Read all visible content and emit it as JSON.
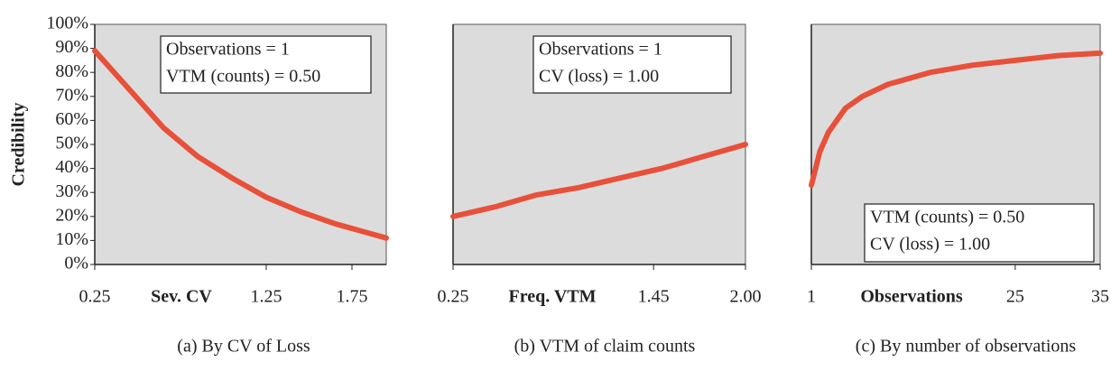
{
  "chart_data": [
    {
      "type": "line",
      "caption": "(a) By CV of Loss",
      "x_label": "Sev. CV",
      "y_label": "Credibility",
      "annotations": [
        "Observations = 1",
        "VTM (counts) = 0.50"
      ],
      "x": [
        0.25,
        0.45,
        0.65,
        0.85,
        1.05,
        1.25,
        1.45,
        1.65,
        1.85,
        1.95
      ],
      "values": [
        89,
        73,
        57,
        45,
        36,
        28,
        22,
        17,
        13,
        11
      ],
      "color": "#e8503a",
      "xlim": [
        0.25,
        1.95
      ],
      "xticks": [
        0.25,
        1.25,
        1.75
      ],
      "ylim": [
        0,
        100
      ],
      "yticks": [
        {
          "value": 0,
          "label": "0%"
        },
        {
          "value": 10,
          "label": "10%"
        },
        {
          "value": 20,
          "label": "20%"
        },
        {
          "value": 30,
          "label": "30%"
        },
        {
          "value": 40,
          "label": "40%"
        },
        {
          "value": 50,
          "label": "50%"
        },
        {
          "value": 60,
          "label": "60%"
        },
        {
          "value": 70,
          "label": "70%"
        },
        {
          "value": 80,
          "label": "80%"
        },
        {
          "value": 90,
          "label": "90%"
        },
        {
          "value": 100,
          "label": "100%"
        }
      ]
    },
    {
      "type": "line",
      "caption": "(b) VTM of claim counts",
      "x_label": "Freq. VTM",
      "annotations": [
        "Observations = 1",
        "CV (loss) = 1.00"
      ],
      "x": [
        0.25,
        0.5,
        0.75,
        1.0,
        1.25,
        1.5,
        1.75,
        2.0
      ],
      "values": [
        20,
        24,
        29,
        32,
        36,
        40,
        45,
        50
      ],
      "color": "#e8503a",
      "xlim": [
        0.25,
        2.0
      ],
      "xticks": [
        0.25,
        1.45,
        {
          "value": 2.0,
          "label": "2.00"
        }
      ],
      "ylim": [
        0,
        100
      ]
    },
    {
      "type": "line",
      "caption": "(c) By number of observations",
      "x_label": "Observations",
      "annotations": [
        "VTM (counts) = 0.50",
        "CV (loss) = 1.00"
      ],
      "x": [
        1,
        2,
        3,
        5,
        7,
        10,
        15,
        20,
        25,
        30,
        35
      ],
      "values": [
        33,
        47,
        55,
        65,
        70,
        75,
        80,
        83,
        85,
        87,
        88
      ],
      "color": "#e8503a",
      "xlim": [
        1,
        35
      ],
      "xticks": [
        1,
        25,
        35
      ],
      "ylim": [
        0,
        100
      ]
    }
  ]
}
